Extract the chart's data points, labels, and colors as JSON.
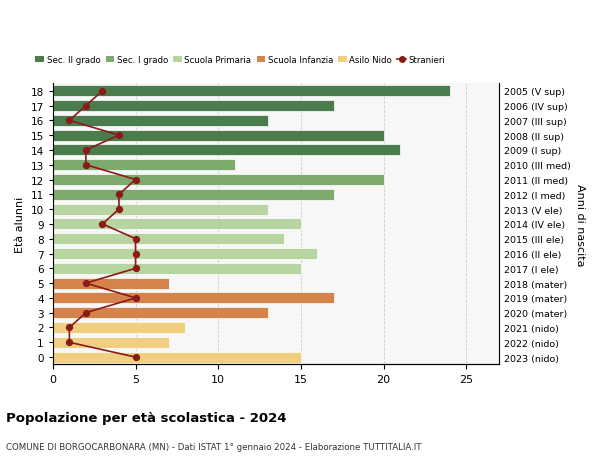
{
  "ages": [
    0,
    1,
    2,
    3,
    4,
    5,
    6,
    7,
    8,
    9,
    10,
    11,
    12,
    13,
    14,
    15,
    16,
    17,
    18
  ],
  "right_labels_by_age": {
    "18": "2005 (V sup)",
    "17": "2006 (IV sup)",
    "16": "2007 (III sup)",
    "15": "2008 (II sup)",
    "14": "2009 (I sup)",
    "13": "2010 (III med)",
    "12": "2011 (II med)",
    "11": "2012 (I med)",
    "10": "2013 (V ele)",
    "9": "2014 (IV ele)",
    "8": "2015 (III ele)",
    "7": "2016 (II ele)",
    "6": "2017 (I ele)",
    "5": "2018 (mater)",
    "4": "2019 (mater)",
    "3": "2020 (mater)",
    "2": "2021 (nido)",
    "1": "2022 (nido)",
    "0": "2023 (nido)"
  },
  "bar_values_by_age": {
    "18": 24,
    "17": 17,
    "16": 13,
    "15": 20,
    "14": 21,
    "13": 11,
    "12": 20,
    "11": 17,
    "10": 13,
    "9": 15,
    "8": 14,
    "7": 16,
    "6": 15,
    "5": 7,
    "4": 17,
    "3": 13,
    "2": 8,
    "1": 7,
    "0": 15
  },
  "bar_colors_by_age": {
    "18": "#4a7c4e",
    "17": "#4a7c4e",
    "16": "#4a7c4e",
    "15": "#4a7c4e",
    "14": "#4a7c4e",
    "13": "#7dab6e",
    "12": "#7dab6e",
    "11": "#7dab6e",
    "10": "#b8d4a0",
    "9": "#b8d4a0",
    "8": "#b8d4a0",
    "7": "#b8d4a0",
    "6": "#b8d4a0",
    "5": "#d4834a",
    "4": "#d4834a",
    "3": "#d4834a",
    "2": "#f0d080",
    "1": "#f0d080",
    "0": "#f0d080"
  },
  "stranieri_by_age": {
    "18": 3,
    "17": 2,
    "16": 1,
    "15": 4,
    "14": 2,
    "13": 2,
    "12": 5,
    "11": 4,
    "10": 4,
    "9": 3,
    "8": 5,
    "7": 5,
    "6": 5,
    "5": 2,
    "4": 5,
    "3": 2,
    "2": 1,
    "1": 1,
    "0": 5
  },
  "stranieri_color": "#8b1a1a",
  "legend_labels": [
    "Sec. II grado",
    "Sec. I grado",
    "Scuola Primaria",
    "Scuola Infanzia",
    "Asilo Nido",
    "Stranieri"
  ],
  "legend_colors": [
    "#4a7c4e",
    "#7dab6e",
    "#b8d4a0",
    "#d4834a",
    "#f0d080",
    "#8b1a1a"
  ],
  "title": "Popolazione per età scolastica - 2024",
  "subtitle": "COMUNE DI BORGOCARBONARA (MN) - Dati ISTAT 1° gennaio 2024 - Elaborazione TUTTITALIA.IT",
  "ylabel_left": "Età alunni",
  "ylabel_right": "Anni di nascita",
  "bg_color": "#ffffff",
  "plot_bg_color": "#f7f7f7",
  "grid_color": "#cccccc",
  "bar_height": 0.75
}
